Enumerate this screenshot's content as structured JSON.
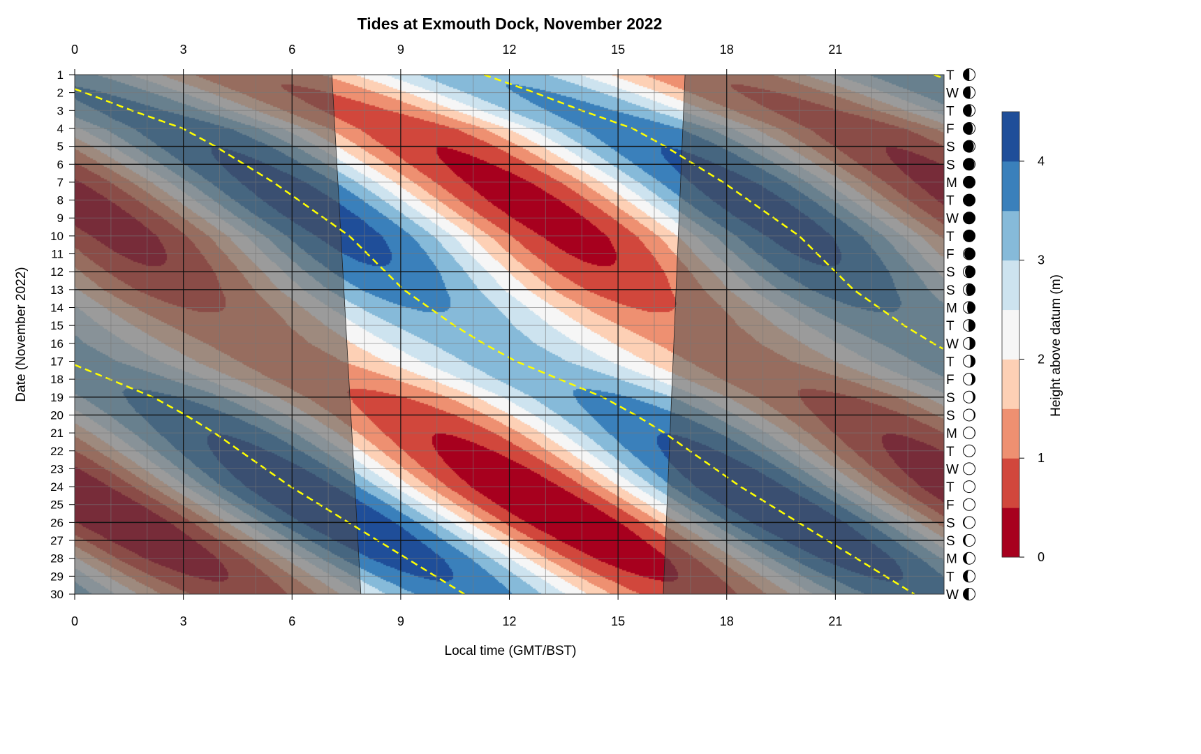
{
  "chart_data": {
    "type": "heatmap",
    "title": "Tides at Exmouth Dock, November 2022",
    "xlabel": "Local time (GMT/BST)",
    "ylabel": "Date (November 2022)",
    "colorbar_label": "Height above datum (m)",
    "xlim": [
      0,
      24
    ],
    "ylim": [
      1,
      30
    ],
    "x_ticks": [
      0,
      3,
      6,
      9,
      12,
      15,
      18,
      21
    ],
    "y_ticks": [
      1,
      2,
      3,
      4,
      5,
      6,
      7,
      8,
      9,
      10,
      11,
      12,
      13,
      14,
      15,
      16,
      17,
      18,
      19,
      20,
      21,
      22,
      23,
      24,
      25,
      26,
      27,
      28,
      29,
      30
    ],
    "colorbar_ticks": [
      0,
      1,
      2,
      3,
      4
    ],
    "levels": [
      0,
      0.5,
      1,
      1.5,
      2,
      2.5,
      3,
      3.5,
      4,
      4.5
    ],
    "level_colors": [
      "#a7001e",
      "#d1473c",
      "#ee9071",
      "#fdd0b5",
      "#f6f6f6",
      "#cde3ef",
      "#86bad9",
      "#3a80bb",
      "#1f4e99"
    ],
    "tide_period_hours": 12.42,
    "mean_height_m": 2.25,
    "days": [
      1,
      2,
      3,
      4,
      5,
      6,
      7,
      8,
      9,
      10,
      11,
      12,
      13,
      14,
      15,
      16,
      17,
      18,
      19,
      20,
      21,
      22,
      23,
      24,
      25,
      26,
      27,
      28,
      29,
      30
    ],
    "high_tide_phase_hours": [
      11.3,
      12.7,
      14.0,
      15.4,
      16.3,
      17.1,
      17.9,
      18.6,
      19.3,
      20.0,
      20.5,
      21.0,
      21.5,
      22.2,
      22.9,
      23.7,
      24.6,
      25.8,
      27.0,
      27.9,
      28.7,
      29.4,
      30.1,
      30.8,
      31.6,
      32.4,
      33.2,
      34.0,
      34.8,
      35.6
    ],
    "tidal_amplitude_m": [
      1.2,
      1.3,
      1.4,
      1.6,
      1.75,
      1.85,
      1.95,
      2.0,
      2.0,
      1.95,
      1.85,
      1.7,
      1.5,
      1.3,
      1.1,
      1.0,
      1.0,
      1.15,
      1.35,
      1.55,
      1.75,
      1.9,
      2.05,
      2.15,
      2.2,
      2.2,
      2.1,
      2.0,
      1.8,
      1.6
    ],
    "sunrise_hours": {
      "day1": 7.1,
      "day30": 7.9
    },
    "sunset_hours": {
      "day1": 16.85,
      "day30": 16.25
    },
    "weekend_days": [
      5,
      6,
      12,
      13,
      19,
      20,
      26,
      27
    ],
    "weekday_letters": [
      "T",
      "W",
      "T",
      "F",
      "S",
      "S",
      "M",
      "T",
      "W",
      "T",
      "F",
      "S",
      "S",
      "M",
      "T",
      "W",
      "T",
      "F",
      "S",
      "S",
      "M",
      "T",
      "W",
      "T",
      "F",
      "S",
      "S",
      "M",
      "T",
      "W"
    ],
    "full_moon_day": 8,
    "new_moon_day": 23,
    "high_tide_line_color": "#ffff00",
    "night_shade_color": "#505050"
  }
}
